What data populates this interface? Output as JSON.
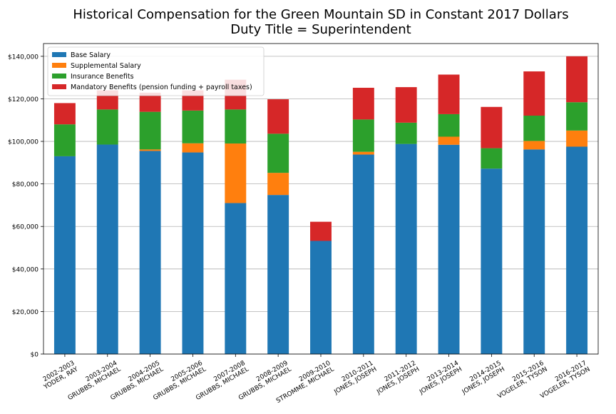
{
  "chart_data": {
    "type": "bar",
    "stacked": true,
    "title": "Historical Compensation for the Green Mountain SD in Constant 2017 Dollars",
    "subtitle": "Duty Title = Superintendent",
    "xlabel": "",
    "ylabel": "",
    "ylim": [
      0,
      146000
    ],
    "yticks": [
      0,
      20000,
      40000,
      60000,
      80000,
      100000,
      120000,
      140000
    ],
    "ytick_labels": [
      "$0",
      "$20,000",
      "$40,000",
      "$60,000",
      "$80,000",
      "$100,000",
      "$120,000",
      "$140,000"
    ],
    "grid": "horizontal",
    "legend_position": "top-left",
    "categories": [
      "2002-2003\nYODER, RAY",
      "2003-2004\nGRUBBS, MICHAEL",
      "2004-2005\nGRUBBS, MICHAEL",
      "2005-2006\nGRUBBS, MICHAEL",
      "2007-2008\nGRUBBS, MICHAEL",
      "2008-2009\nGRUBBS, MICHAEL",
      "2009-2010\nSTROMME, MICHAEL",
      "2010-2011\nJONES, JOSEPH",
      "2011-2012\nJONES, JOSEPH",
      "2013-2014\nJONES, JOSEPH",
      "2014-2015\nJONES, JOSEPH",
      "2015-2016\nVOGELER, TYSON",
      "2016-2017\nVOGELER, TYSON"
    ],
    "series": [
      {
        "name": "Base Salary",
        "color": "#1f77b4",
        "values": [
          93000,
          98500,
          95500,
          94800,
          71000,
          74800,
          53200,
          93800,
          98800,
          98400,
          87200,
          96200,
          97500
        ]
      },
      {
        "name": "Supplemental Salary",
        "color": "#ff7f0e",
        "values": [
          0,
          0,
          700,
          4300,
          28000,
          10400,
          0,
          1300,
          0,
          3800,
          0,
          4000,
          7600
        ]
      },
      {
        "name": "Insurance Benefits",
        "color": "#2ca02c",
        "values": [
          15000,
          16500,
          17700,
          15400,
          16000,
          18400,
          0,
          15200,
          10000,
          10600,
          9600,
          11900,
          13300
        ]
      },
      {
        "name": "Mandatory Benefits (pension funding + payroll taxes)",
        "color": "#d62728",
        "values": [
          10000,
          9000,
          9000,
          9500,
          14000,
          16200,
          9000,
          14900,
          16700,
          18600,
          19400,
          20800,
          21600
        ]
      }
    ]
  }
}
